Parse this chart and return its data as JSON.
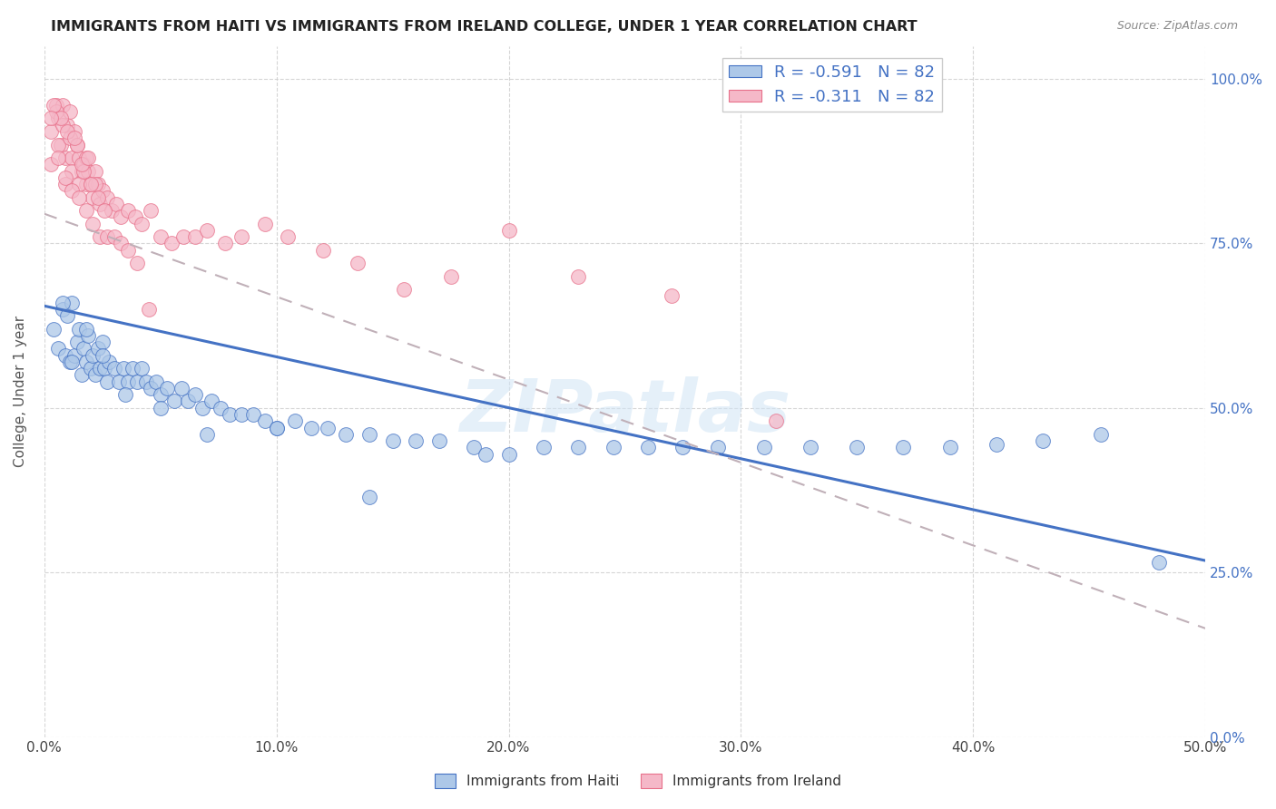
{
  "title": "IMMIGRANTS FROM HAITI VS IMMIGRANTS FROM IRELAND COLLEGE, UNDER 1 YEAR CORRELATION CHART",
  "source": "Source: ZipAtlas.com",
  "ylabel_label": "College, Under 1 year",
  "legend_labels": [
    "Immigrants from Haiti",
    "Immigrants from Ireland"
  ],
  "haiti_R": "-0.591",
  "ireland_R": "-0.311",
  "N": "82",
  "haiti_color": "#adc8e8",
  "ireland_color": "#f5b8c8",
  "haiti_line_color": "#4472c4",
  "ireland_line_color": "#e8708a",
  "legend_text_color": "#4472c4",
  "watermark": "ZIPatlas",
  "xlim": [
    0.0,
    0.5
  ],
  "ylim": [
    0.0,
    1.05
  ],
  "haiti_trend_x": [
    0.0,
    0.5
  ],
  "haiti_trend_y": [
    0.655,
    0.268
  ],
  "ireland_trend_x": [
    0.0,
    0.5
  ],
  "ireland_trend_y": [
    0.795,
    0.165
  ],
  "haiti_scatter_x": [
    0.004,
    0.006,
    0.008,
    0.009,
    0.01,
    0.011,
    0.012,
    0.013,
    0.014,
    0.015,
    0.016,
    0.017,
    0.018,
    0.019,
    0.02,
    0.021,
    0.022,
    0.023,
    0.024,
    0.025,
    0.026,
    0.027,
    0.028,
    0.03,
    0.032,
    0.034,
    0.036,
    0.038,
    0.04,
    0.042,
    0.044,
    0.046,
    0.048,
    0.05,
    0.053,
    0.056,
    0.059,
    0.062,
    0.065,
    0.068,
    0.072,
    0.076,
    0.08,
    0.085,
    0.09,
    0.095,
    0.1,
    0.108,
    0.115,
    0.122,
    0.13,
    0.14,
    0.15,
    0.16,
    0.17,
    0.185,
    0.2,
    0.215,
    0.23,
    0.245,
    0.26,
    0.275,
    0.29,
    0.31,
    0.33,
    0.35,
    0.37,
    0.39,
    0.41,
    0.43,
    0.455,
    0.48,
    0.008,
    0.012,
    0.018,
    0.025,
    0.035,
    0.05,
    0.07,
    0.1,
    0.14,
    0.19
  ],
  "haiti_scatter_y": [
    0.62,
    0.59,
    0.65,
    0.58,
    0.64,
    0.57,
    0.66,
    0.58,
    0.6,
    0.62,
    0.55,
    0.59,
    0.57,
    0.61,
    0.56,
    0.58,
    0.55,
    0.59,
    0.56,
    0.6,
    0.56,
    0.54,
    0.57,
    0.56,
    0.54,
    0.56,
    0.54,
    0.56,
    0.54,
    0.56,
    0.54,
    0.53,
    0.54,
    0.52,
    0.53,
    0.51,
    0.53,
    0.51,
    0.52,
    0.5,
    0.51,
    0.5,
    0.49,
    0.49,
    0.49,
    0.48,
    0.47,
    0.48,
    0.47,
    0.47,
    0.46,
    0.46,
    0.45,
    0.45,
    0.45,
    0.44,
    0.43,
    0.44,
    0.44,
    0.44,
    0.44,
    0.44,
    0.44,
    0.44,
    0.44,
    0.44,
    0.44,
    0.44,
    0.445,
    0.45,
    0.46,
    0.265,
    0.66,
    0.57,
    0.62,
    0.58,
    0.52,
    0.5,
    0.46,
    0.47,
    0.365,
    0.43
  ],
  "ireland_scatter_x": [
    0.003,
    0.005,
    0.006,
    0.007,
    0.008,
    0.009,
    0.01,
    0.011,
    0.012,
    0.013,
    0.014,
    0.015,
    0.016,
    0.017,
    0.018,
    0.019,
    0.02,
    0.021,
    0.022,
    0.023,
    0.024,
    0.025,
    0.027,
    0.029,
    0.031,
    0.033,
    0.036,
    0.039,
    0.042,
    0.046,
    0.05,
    0.055,
    0.06,
    0.065,
    0.07,
    0.078,
    0.085,
    0.095,
    0.105,
    0.12,
    0.135,
    0.155,
    0.175,
    0.2,
    0.23,
    0.27,
    0.315,
    0.003,
    0.006,
    0.009,
    0.012,
    0.015,
    0.018,
    0.022,
    0.005,
    0.008,
    0.011,
    0.014,
    0.017,
    0.02,
    0.004,
    0.007,
    0.01,
    0.013,
    0.016,
    0.019,
    0.023,
    0.026,
    0.003,
    0.006,
    0.009,
    0.012,
    0.015,
    0.018,
    0.021,
    0.024,
    0.027,
    0.03,
    0.033,
    0.036,
    0.04,
    0.045
  ],
  "ireland_scatter_y": [
    0.92,
    0.96,
    0.94,
    0.9,
    0.96,
    0.88,
    0.93,
    0.95,
    0.88,
    0.92,
    0.9,
    0.88,
    0.86,
    0.87,
    0.84,
    0.86,
    0.84,
    0.82,
    0.86,
    0.84,
    0.81,
    0.83,
    0.82,
    0.8,
    0.81,
    0.79,
    0.8,
    0.79,
    0.78,
    0.8,
    0.76,
    0.75,
    0.76,
    0.76,
    0.77,
    0.75,
    0.76,
    0.78,
    0.76,
    0.74,
    0.72,
    0.68,
    0.7,
    0.77,
    0.7,
    0.67,
    0.48,
    0.87,
    0.9,
    0.84,
    0.86,
    0.84,
    0.88,
    0.84,
    0.95,
    0.93,
    0.91,
    0.9,
    0.86,
    0.84,
    0.96,
    0.94,
    0.92,
    0.91,
    0.87,
    0.88,
    0.82,
    0.8,
    0.94,
    0.88,
    0.85,
    0.83,
    0.82,
    0.8,
    0.78,
    0.76,
    0.76,
    0.76,
    0.75,
    0.74,
    0.72,
    0.65
  ]
}
